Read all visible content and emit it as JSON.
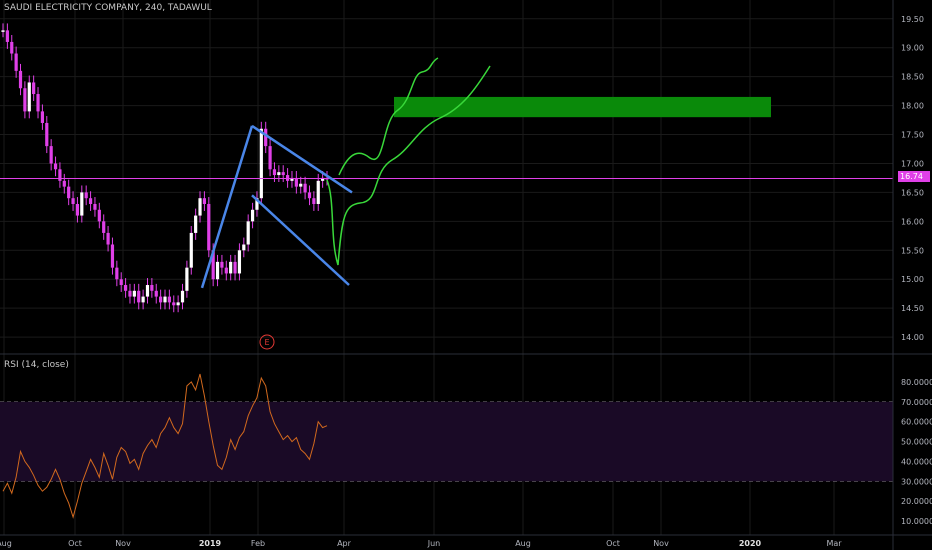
{
  "header": {
    "title": "SAUDI ELECTRICITY COMPANY, 240, TADAWUL"
  },
  "rsi_panel": {
    "label": "RSI (14, close)"
  },
  "last_price": "16.74",
  "earnings_marker": "E",
  "colors": {
    "background": "#000000",
    "grid": "#1a1a1a",
    "candles": "#e040e8",
    "last_price_line": "#e040e8",
    "pattern_lines": "#4a86e8",
    "projection_lines": "#39d83a",
    "target_zone": "#0a8a0a",
    "rsi_line": "#d2691e",
    "rsi_band": "#1a0a26",
    "earnings": "#e53935"
  },
  "chart_data": [
    {
      "type": "candlestick",
      "title": "SAUDI ELECTRICITY COMPANY, 240, TADAWUL",
      "y_ticks": [
        "19.50",
        "19.00",
        "18.50",
        "18.00",
        "17.50",
        "17.00",
        "16.50",
        "16.00",
        "15.50",
        "15.00",
        "14.50",
        "14.00"
      ],
      "ylim": [
        13.95,
        19.6
      ],
      "x_ticks": [
        "Aug",
        "Oct",
        "Nov",
        "2019",
        "Feb",
        "Apr",
        "Jun",
        "Aug",
        "Oct",
        "Nov",
        "2020",
        "Mar"
      ],
      "last_price": 16.74,
      "series": [
        {
          "values": [
            19.3,
            19.1,
            18.9,
            18.6,
            18.3,
            17.9,
            18.4,
            18.2,
            17.9,
            17.7,
            17.3,
            17.0,
            16.9,
            16.7,
            16.6,
            16.4,
            16.3,
            16.1,
            16.5,
            16.4,
            16.3,
            16.2,
            16.0,
            15.8,
            15.6,
            15.2,
            15.0,
            14.9,
            14.8,
            14.7,
            14.8,
            14.6,
            14.7,
            14.9,
            14.8,
            14.7,
            14.6,
            14.7,
            14.6,
            14.55,
            14.6,
            14.8,
            15.2,
            15.8,
            16.1,
            16.4,
            16.3,
            15.5,
            15.0,
            15.3,
            15.2,
            15.1,
            15.3,
            15.1,
            15.5,
            15.6,
            16.0,
            16.2,
            16.4,
            17.6,
            17.3,
            16.9,
            16.8,
            16.85,
            16.8,
            16.7,
            16.75,
            16.6,
            16.65,
            16.5,
            16.4,
            16.3,
            16.7,
            16.75,
            16.74
          ]
        }
      ],
      "annotations": {
        "pattern": "bull flag",
        "target_zone": [
          17.8,
          18.15
        ],
        "earnings_marker": "E"
      }
    },
    {
      "type": "line",
      "title": "RSI (14, close)",
      "y_ticks": [
        "80.0000",
        "70.0000",
        "60.0000",
        "50.0000",
        "40.0000",
        "30.0000",
        "20.0000",
        "10.0000"
      ],
      "ylim": [
        8,
        84
      ],
      "bands": [
        30,
        70
      ],
      "series": [
        {
          "values": [
            25,
            29,
            24,
            32,
            45,
            40,
            37,
            33,
            28,
            25,
            27,
            31,
            36,
            31,
            24,
            19,
            12,
            20,
            29,
            35,
            41,
            37,
            32,
            44,
            38,
            31,
            42,
            47,
            45,
            39,
            41,
            36,
            44,
            48,
            51,
            47,
            54,
            57,
            62,
            57,
            54,
            59,
            78,
            80,
            76,
            84,
            73,
            60,
            48,
            38,
            36,
            42,
            51,
            46,
            52,
            55,
            63,
            68,
            72,
            82,
            78,
            65,
            59,
            55,
            51,
            53,
            50,
            52,
            46,
            44,
            41,
            49,
            60,
            57,
            58
          ]
        }
      ]
    }
  ]
}
